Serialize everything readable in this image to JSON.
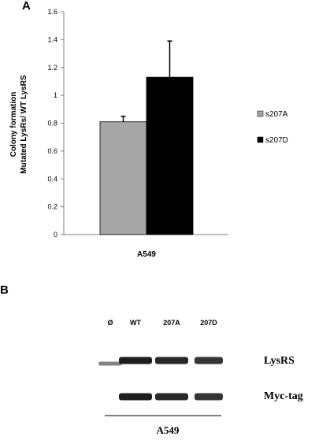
{
  "panel_a_letter": "A",
  "panel_b_letter": "B",
  "chart_data": {
    "type": "bar",
    "ylabel_line1": "Colony formation",
    "ylabel_line2": "Mutated LysRs/ WT LysRS",
    "categories": [
      "A549"
    ],
    "ylim": [
      0,
      1.6
    ],
    "yticks": [
      "0",
      "0.2",
      "0.4",
      "0.6",
      "0.8",
      "1",
      "1.2",
      "1.4",
      "1.6"
    ],
    "grid": false,
    "legend_position": "right",
    "series": [
      {
        "name": "s207A",
        "values": [
          0.81
        ],
        "error": [
          0.04
        ],
        "color": "#a6a6a6"
      },
      {
        "name": "s207D",
        "values": [
          1.13
        ],
        "error": [
          0.26
        ],
        "color": "#000000"
      }
    ]
  },
  "blot": {
    "lanes": [
      "Ø",
      "WT",
      "207A",
      "207D"
    ],
    "bands": [
      {
        "label": "LysRS",
        "intensities": [
          0.55,
          1.0,
          0.95,
          0.9
        ]
      },
      {
        "label": "Myc-tag",
        "intensities": [
          0,
          1.0,
          0.95,
          0.9
        ]
      }
    ],
    "cell_line": "A549"
  }
}
